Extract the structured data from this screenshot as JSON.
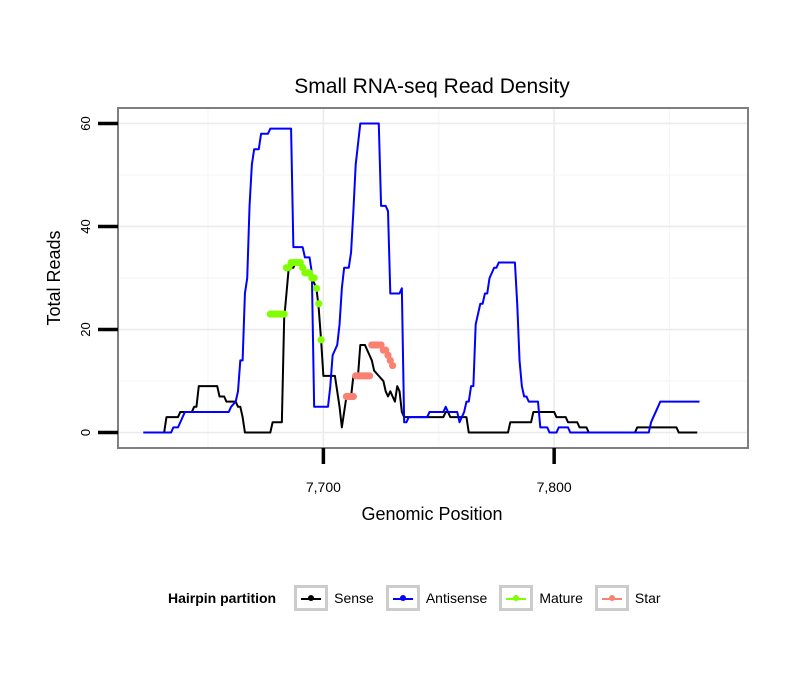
{
  "chart_data": {
    "type": "line",
    "title": "Small RNA-seq Read Density",
    "xlabel": "Genomic Position",
    "ylabel": "Total Reads",
    "xlim": [
      7611,
      7884
    ],
    "ylim": [
      -3,
      63
    ],
    "xticks": [
      7700,
      7800
    ],
    "xtick_labels": [
      "7,700",
      "7,800"
    ],
    "yticks": [
      0,
      20,
      40,
      60
    ],
    "ytick_labels": [
      "0",
      "20",
      "40",
      "60"
    ],
    "grid": true,
    "legend_title": "Hairpin partition",
    "legend_position": "bottom",
    "series": [
      {
        "name": "Sense",
        "color": "#000000",
        "style": "line",
        "points": [
          [
            7622,
            0
          ],
          [
            7631,
            0
          ],
          [
            7632,
            3
          ],
          [
            7637,
            3
          ],
          [
            7638,
            4
          ],
          [
            7643,
            4
          ],
          [
            7644,
            5
          ],
          [
            7645,
            5
          ],
          [
            7646,
            9
          ],
          [
            7654,
            9
          ],
          [
            7655,
            7
          ],
          [
            7657,
            7
          ],
          [
            7658,
            6
          ],
          [
            7662,
            6
          ],
          [
            7663,
            5
          ],
          [
            7664,
            5
          ],
          [
            7665,
            3
          ],
          [
            7666,
            0
          ],
          [
            7677,
            0
          ],
          [
            7678,
            2
          ],
          [
            7682,
            2
          ],
          [
            7683,
            22
          ],
          [
            7685,
            32
          ],
          [
            7687,
            32
          ],
          [
            7688,
            33
          ],
          [
            7690,
            33
          ],
          [
            7691,
            32
          ],
          [
            7693,
            31
          ],
          [
            7695,
            30
          ],
          [
            7697,
            28
          ],
          [
            7698,
            24
          ],
          [
            7699,
            18
          ],
          [
            7700,
            11
          ],
          [
            7705,
            11
          ],
          [
            7707,
            5
          ],
          [
            7708,
            1
          ],
          [
            7710,
            7
          ],
          [
            7712,
            7
          ],
          [
            7713,
            11
          ],
          [
            7715,
            11
          ],
          [
            7716,
            17
          ],
          [
            7718,
            17
          ],
          [
            7719,
            16
          ],
          [
            7720,
            15
          ],
          [
            7721,
            14
          ],
          [
            7722,
            12
          ],
          [
            7724,
            11
          ],
          [
            7726,
            10
          ],
          [
            7727,
            8
          ],
          [
            7728,
            7
          ],
          [
            7729,
            8
          ],
          [
            7730,
            7
          ],
          [
            7731,
            6
          ],
          [
            7732,
            9
          ],
          [
            7733,
            8
          ],
          [
            7734,
            4
          ],
          [
            7735,
            3
          ],
          [
            7752,
            3
          ],
          [
            7753,
            4
          ],
          [
            7754,
            4
          ],
          [
            7755,
            3
          ],
          [
            7762,
            3
          ],
          [
            7763,
            0
          ],
          [
            7780,
            0
          ],
          [
            7781,
            2
          ],
          [
            7790,
            2
          ],
          [
            7791,
            4
          ],
          [
            7800,
            4
          ],
          [
            7801,
            3
          ],
          [
            7805,
            3
          ],
          [
            7806,
            2
          ],
          [
            7810,
            2
          ],
          [
            7811,
            1
          ],
          [
            7814,
            1
          ],
          [
            7815,
            0
          ],
          [
            7835,
            0
          ],
          [
            7836,
            1
          ],
          [
            7853,
            1
          ],
          [
            7854,
            0
          ],
          [
            7862,
            0
          ]
        ]
      },
      {
        "name": "Antisense",
        "color": "#0000ff",
        "style": "line",
        "points": [
          [
            7622,
            0
          ],
          [
            7634,
            0
          ],
          [
            7635,
            1
          ],
          [
            7637,
            1
          ],
          [
            7638,
            2
          ],
          [
            7640,
            4
          ],
          [
            7659,
            4
          ],
          [
            7660,
            5
          ],
          [
            7662,
            6
          ],
          [
            7663,
            8
          ],
          [
            7664,
            14
          ],
          [
            7665,
            14
          ],
          [
            7666,
            27
          ],
          [
            7667,
            30
          ],
          [
            7668,
            44
          ],
          [
            7669,
            52
          ],
          [
            7670,
            55
          ],
          [
            7671,
            55
          ],
          [
            7672,
            55
          ],
          [
            7673,
            58
          ],
          [
            7676,
            58
          ],
          [
            7677,
            59
          ],
          [
            7686,
            59
          ],
          [
            7687,
            36
          ],
          [
            7691,
            36
          ],
          [
            7692,
            34
          ],
          [
            7694,
            34
          ],
          [
            7695,
            31
          ],
          [
            7696,
            5
          ],
          [
            7702,
            5
          ],
          [
            7703,
            9
          ],
          [
            7704,
            15
          ],
          [
            7705,
            16
          ],
          [
            7706,
            17
          ],
          [
            7707,
            21
          ],
          [
            7708,
            28
          ],
          [
            7709,
            32
          ],
          [
            7711,
            32
          ],
          [
            7712,
            35
          ],
          [
            7713,
            43
          ],
          [
            7714,
            52
          ],
          [
            7715,
            56
          ],
          [
            7716,
            60
          ],
          [
            7724,
            60
          ],
          [
            7725,
            44
          ],
          [
            7727,
            44
          ],
          [
            7728,
            43
          ],
          [
            7729,
            27
          ],
          [
            7733,
            27
          ],
          [
            7734,
            28
          ],
          [
            7735,
            2
          ],
          [
            7736,
            2
          ],
          [
            7737,
            3
          ],
          [
            7745,
            3
          ],
          [
            7746,
            4
          ],
          [
            7752,
            4
          ],
          [
            7753,
            5
          ],
          [
            7754,
            4
          ],
          [
            7758,
            4
          ],
          [
            7759,
            2
          ],
          [
            7760,
            3
          ],
          [
            7761,
            4
          ],
          [
            7762,
            6
          ],
          [
            7763,
            6
          ],
          [
            7764,
            9
          ],
          [
            7765,
            9
          ],
          [
            7766,
            21
          ],
          [
            7767,
            23
          ],
          [
            7768,
            25
          ],
          [
            7769,
            25
          ],
          [
            7770,
            27
          ],
          [
            7771,
            27
          ],
          [
            7772,
            30
          ],
          [
            7773,
            31
          ],
          [
            7774,
            32
          ],
          [
            7775,
            32
          ],
          [
            7776,
            33
          ],
          [
            7783,
            33
          ],
          [
            7784,
            25
          ],
          [
            7785,
            14
          ],
          [
            7786,
            9
          ],
          [
            7787,
            7
          ],
          [
            7788,
            7
          ],
          [
            7789,
            6
          ],
          [
            7790,
            6
          ],
          [
            7793,
            6
          ],
          [
            7794,
            1
          ],
          [
            7797,
            1
          ],
          [
            7798,
            0
          ],
          [
            7799,
            0
          ],
          [
            7801,
            0
          ],
          [
            7802,
            1
          ],
          [
            7806,
            1
          ],
          [
            7807,
            0
          ],
          [
            7841,
            0
          ],
          [
            7842,
            2
          ],
          [
            7843,
            3
          ],
          [
            7844,
            4
          ],
          [
            7845,
            5
          ],
          [
            7846,
            6
          ],
          [
            7863,
            6
          ]
        ]
      },
      {
        "name": "Mature",
        "color": "#7fff00",
        "style": "points",
        "points": [
          [
            7677,
            23
          ],
          [
            7678,
            23
          ],
          [
            7679,
            23
          ],
          [
            7680,
            23
          ],
          [
            7681,
            23
          ],
          [
            7682,
            23
          ],
          [
            7683,
            23
          ],
          [
            7684,
            32
          ],
          [
            7685,
            32
          ],
          [
            7686,
            33
          ],
          [
            7687,
            33
          ],
          [
            7688,
            33
          ],
          [
            7689,
            33
          ],
          [
            7690,
            33
          ],
          [
            7691,
            32
          ],
          [
            7692,
            31
          ],
          [
            7693,
            31
          ],
          [
            7694,
            31
          ],
          [
            7695,
            30
          ],
          [
            7696,
            30
          ],
          [
            7697,
            28
          ],
          [
            7698,
            25
          ],
          [
            7699,
            18
          ]
        ]
      },
      {
        "name": "Star",
        "color": "#fa8072",
        "style": "points",
        "points": [
          [
            7710,
            7
          ],
          [
            7711,
            7
          ],
          [
            7712,
            7
          ],
          [
            7713,
            7
          ],
          [
            7714,
            11
          ],
          [
            7715,
            11
          ],
          [
            7716,
            11
          ],
          [
            7717,
            11
          ],
          [
            7718,
            11
          ],
          [
            7719,
            11
          ],
          [
            7720,
            11
          ],
          [
            7721,
            17
          ],
          [
            7722,
            17
          ],
          [
            7723,
            17
          ],
          [
            7724,
            17
          ],
          [
            7725,
            17
          ],
          [
            7726,
            16
          ],
          [
            7727,
            16
          ],
          [
            7728,
            15
          ],
          [
            7729,
            14
          ],
          [
            7730,
            13
          ]
        ]
      }
    ]
  }
}
